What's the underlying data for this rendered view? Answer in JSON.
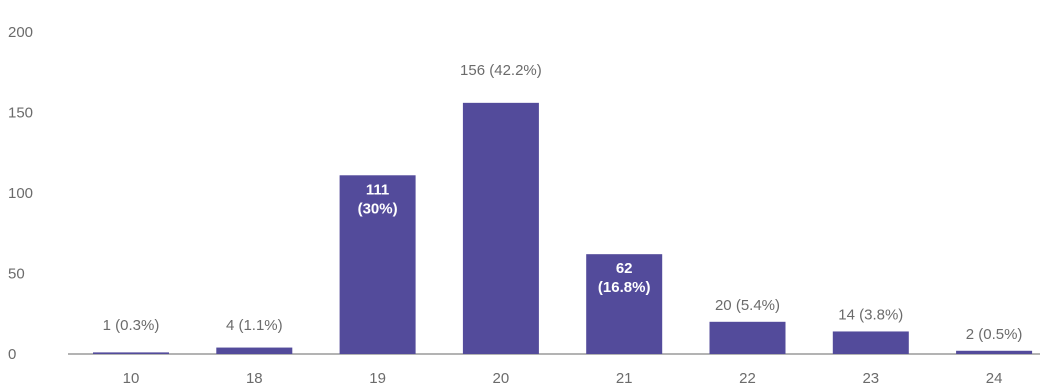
{
  "chart_data": {
    "type": "bar",
    "categories": [
      "10",
      "18",
      "19",
      "20",
      "21",
      "22",
      "23",
      "24"
    ],
    "values": [
      1,
      4,
      111,
      156,
      62,
      20,
      14,
      2
    ],
    "data_labels": [
      "1 (0.3%)",
      "4 (1.1%)",
      "111 (30%)",
      "156 (42.2%)",
      "62 (16.8%)",
      "20 (5.4%)",
      "14 (3.8%)",
      "2 (0.5%)"
    ],
    "y_ticks": [
      "0",
      "50",
      "100",
      "150",
      "200"
    ],
    "ylim": [
      0,
      200
    ],
    "grid": false,
    "title": "",
    "xlabel": "",
    "ylabel": "",
    "colors": {
      "bar": "#534b9b",
      "axis": "#9a9a9a",
      "label": "#6b6b6b",
      "inside_label": "#ffffff"
    }
  }
}
